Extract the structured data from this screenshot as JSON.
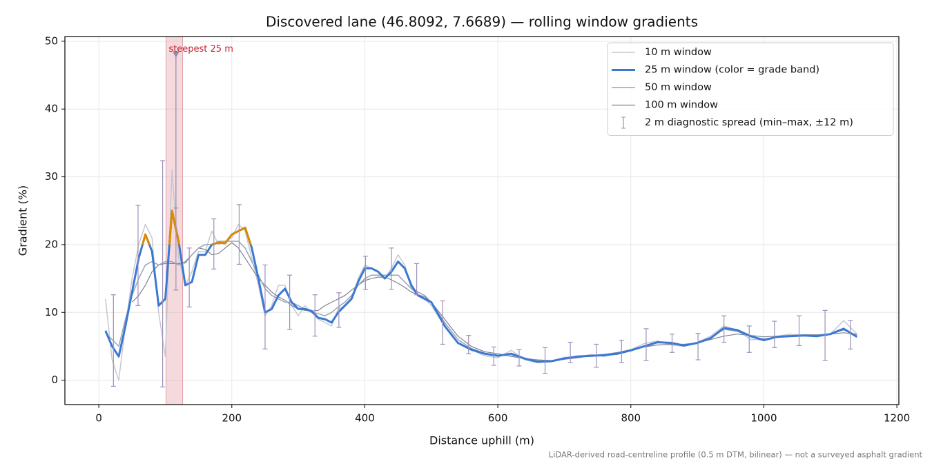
{
  "chart_data": {
    "type": "line",
    "title": "Discovered lane (46.8092, 7.6689) — rolling window gradients",
    "x_label": "Distance uphill (m)",
    "y_label": "Gradient (%)",
    "footnote": "LiDAR-derived road-centreline profile (0.5 m DTM, bilinear) — not a surveyed asphalt gradient",
    "xlim": [
      -51,
      1203
    ],
    "ylim": [
      -3.6,
      50.7
    ],
    "xticks": [
      0,
      200,
      400,
      600,
      800,
      1000,
      1200
    ],
    "yticks": [
      0,
      10,
      20,
      30,
      40,
      50
    ],
    "grid": true,
    "legend": "upper right",
    "x": [
      10,
      20,
      30,
      40,
      50,
      60,
      70,
      80,
      90,
      100,
      110,
      120,
      130,
      140,
      150,
      160,
      170,
      180,
      190,
      200,
      210,
      220,
      230,
      240,
      250,
      260,
      270,
      280,
      290,
      300,
      310,
      320,
      330,
      340,
      350,
      360,
      370,
      380,
      390,
      400,
      410,
      420,
      430,
      440,
      450,
      460,
      470,
      480,
      490,
      500,
      520,
      540,
      560,
      580,
      600,
      620,
      640,
      660,
      680,
      700,
      720,
      740,
      760,
      780,
      800,
      820,
      840,
      860,
      880,
      900,
      920,
      940,
      960,
      980,
      1000,
      1020,
      1040,
      1060,
      1080,
      1100,
      1120,
      1140
    ],
    "series": [
      {
        "name": "10 m window",
        "color": "#c4c8d0",
        "width": 1.5,
        "values": [
          12,
          3,
          0,
          8,
          15,
          20,
          23,
          21,
          10,
          3.5,
          31,
          18,
          14,
          16,
          19,
          19,
          22,
          20,
          20.5,
          21,
          23,
          22,
          18,
          14,
          9.5,
          11,
          14,
          14,
          11,
          9.5,
          11,
          10,
          9,
          8.5,
          8,
          10.5,
          11,
          12,
          15,
          17,
          16.5,
          16,
          15,
          16.5,
          18.5,
          17,
          13.5,
          12.5,
          12,
          11,
          8,
          5.5,
          4.5,
          3.6,
          3.3,
          4.4,
          3,
          2.6,
          2.8,
          3.4,
          3.4,
          3.8,
          3.5,
          4,
          4.5,
          5.4,
          5.8,
          5.2,
          5,
          5.6,
          6.5,
          8,
          7.4,
          6,
          6,
          6.5,
          6.8,
          6.6,
          6.4,
          6.8,
          8.8,
          6.8
        ]
      },
      {
        "name": "25 m window (color = grade band)",
        "color": "#3a78d4",
        "width": 3,
        "band_threshold": 20,
        "band_color": "#de8a00",
        "values": [
          7.3,
          5,
          3.5,
          8,
          13,
          18,
          21.5,
          19,
          11,
          12,
          25,
          20.5,
          14,
          14.5,
          18.5,
          18.5,
          20,
          20.3,
          20.2,
          21.5,
          22,
          22.5,
          19.5,
          15,
          10,
          10.5,
          12.5,
          13.5,
          11.5,
          10.5,
          10.5,
          10.2,
          9.2,
          9,
          8.5,
          10,
          11,
          12,
          14.5,
          16.5,
          16.5,
          16,
          15,
          16,
          17.5,
          16.5,
          14,
          12.5,
          12,
          11.5,
          8,
          5.5,
          4.5,
          3.9,
          3.6,
          3.9,
          3.2,
          2.7,
          2.8,
          3.2,
          3.5,
          3.6,
          3.7,
          3.9,
          4.4,
          5,
          5.6,
          5.5,
          5.1,
          5.5,
          6.2,
          7.7,
          7.4,
          6.5,
          5.9,
          6.4,
          6.5,
          6.6,
          6.5,
          6.8,
          7.6,
          6.4
        ]
      },
      {
        "name": "50 m window",
        "color": "#9aa3b5",
        "width": 1.5,
        "values": [
          7,
          6,
          5,
          9,
          12.5,
          15,
          17,
          17.5,
          17,
          17.5,
          17.5,
          17,
          17.5,
          18.5,
          19.5,
          20,
          20,
          20.5,
          20.5,
          20.5,
          20.5,
          19.5,
          17.5,
          15.5,
          13.5,
          12.5,
          12,
          11.5,
          11.5,
          11,
          10.5,
          10,
          9.8,
          9.5,
          10,
          10.8,
          11.5,
          12.5,
          14,
          15,
          15.5,
          15.5,
          15.5,
          15.5,
          15.5,
          14.5,
          13.5,
          13,
          12.5,
          11.5,
          8.5,
          6,
          4.7,
          4,
          3.7,
          3.6,
          3.2,
          2.9,
          2.8,
          3.1,
          3.4,
          3.6,
          3.8,
          4,
          4.4,
          5,
          5.5,
          5.6,
          5.2,
          5.4,
          6.3,
          7.5,
          7.2,
          6.4,
          6.1,
          6.3,
          6.5,
          6.6,
          6.6,
          6.8,
          7.4,
          6.6
        ]
      },
      {
        "name": "100 m window",
        "color": "#7b8092",
        "width": 1.2,
        "values": [
          null,
          null,
          null,
          null,
          11.5,
          12.5,
          14,
          16,
          17,
          17.2,
          17.2,
          17.2,
          17.3,
          18.5,
          19.5,
          19.3,
          18.5,
          18.7,
          19.5,
          20.3,
          19.5,
          18,
          16.5,
          15,
          14,
          13,
          12.3,
          11.8,
          11,
          10.5,
          10.3,
          10.2,
          10.3,
          11,
          11.5,
          12,
          12.5,
          13.3,
          14,
          14.7,
          15,
          15.2,
          15.2,
          14.8,
          14.3,
          13.7,
          13,
          12.6,
          12.3,
          11.5,
          9,
          6.5,
          5,
          4.2,
          3.9,
          3.5,
          3.2,
          3,
          2.9,
          3.1,
          3.3,
          3.6,
          3.8,
          4.1,
          4.5,
          4.9,
          5.2,
          5.3,
          5.3,
          5.5,
          6,
          6.5,
          6.8,
          6.6,
          6.4,
          6.5,
          6.6,
          6.7,
          6.7,
          6.8,
          7,
          6.8
        ]
      }
    ],
    "error_bars": {
      "name": "2 m diagnostic spread (min–max, ±12 m)",
      "color": "#9d8fba",
      "x": [
        22,
        59,
        96,
        116,
        136,
        173,
        211,
        250,
        287,
        325,
        361,
        401,
        440,
        478,
        517,
        556,
        594,
        632,
        671,
        709,
        748,
        786,
        823,
        862,
        901,
        940,
        978,
        1016,
        1053,
        1092,
        1130
      ],
      "low": [
        -0.9,
        11,
        -1,
        13.3,
        10.8,
        16.4,
        17.1,
        4.6,
        7.5,
        6.5,
        7.8,
        13.4,
        13.4,
        12.6,
        5.3,
        3.9,
        2.2,
        2.1,
        1,
        2.6,
        1.9,
        2.6,
        2.9,
        4.1,
        3,
        5.6,
        4.1,
        4.8,
        5.1,
        2.9,
        4.6
      ],
      "high": [
        12.6,
        25.8,
        32.4,
        25.4,
        19.5,
        23.8,
        25.9,
        17,
        15.5,
        12.6,
        12.9,
        18.3,
        19.5,
        17.2,
        11.7,
        6.6,
        4.9,
        4.5,
        4.8,
        5.6,
        5.3,
        5.9,
        7.6,
        6.8,
        6.9,
        9.5,
        8,
        8.7,
        9.5,
        10.3,
        8.8
      ]
    },
    "highlight": {
      "label": "steepest 25 m",
      "x": [
        101,
        126
      ],
      "color": "#e3a2ab",
      "text_color": "#c8202e",
      "marker_x": 116,
      "marker_y": 48,
      "marker_from": 25.3,
      "marker_color": "#8e8aa8"
    }
  }
}
